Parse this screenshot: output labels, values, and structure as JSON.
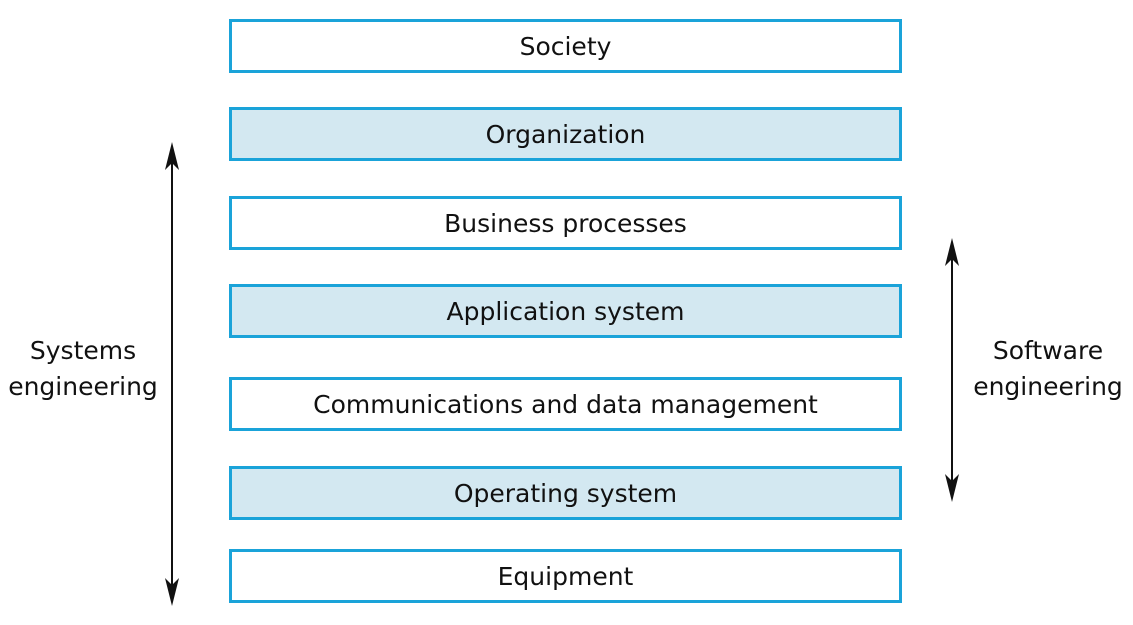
{
  "layers": [
    {
      "label": "Society",
      "shaded": false
    },
    {
      "label": "Organization",
      "shaded": true
    },
    {
      "label": "Business processes",
      "shaded": false
    },
    {
      "label": "Application system",
      "shaded": true
    },
    {
      "label": "Communications and data management",
      "shaded": false
    },
    {
      "label": "Operating system",
      "shaded": true
    },
    {
      "label": "Equipment",
      "shaded": false
    }
  ],
  "systems_engineering": {
    "line1": "Systems",
    "line2": "engineering"
  },
  "software_engineering": {
    "line1": "Software",
    "line2": "engineering"
  },
  "colors": {
    "border": "#1aa3d9",
    "shaded_fill": "#d3e8f1",
    "text": "#111111"
  }
}
